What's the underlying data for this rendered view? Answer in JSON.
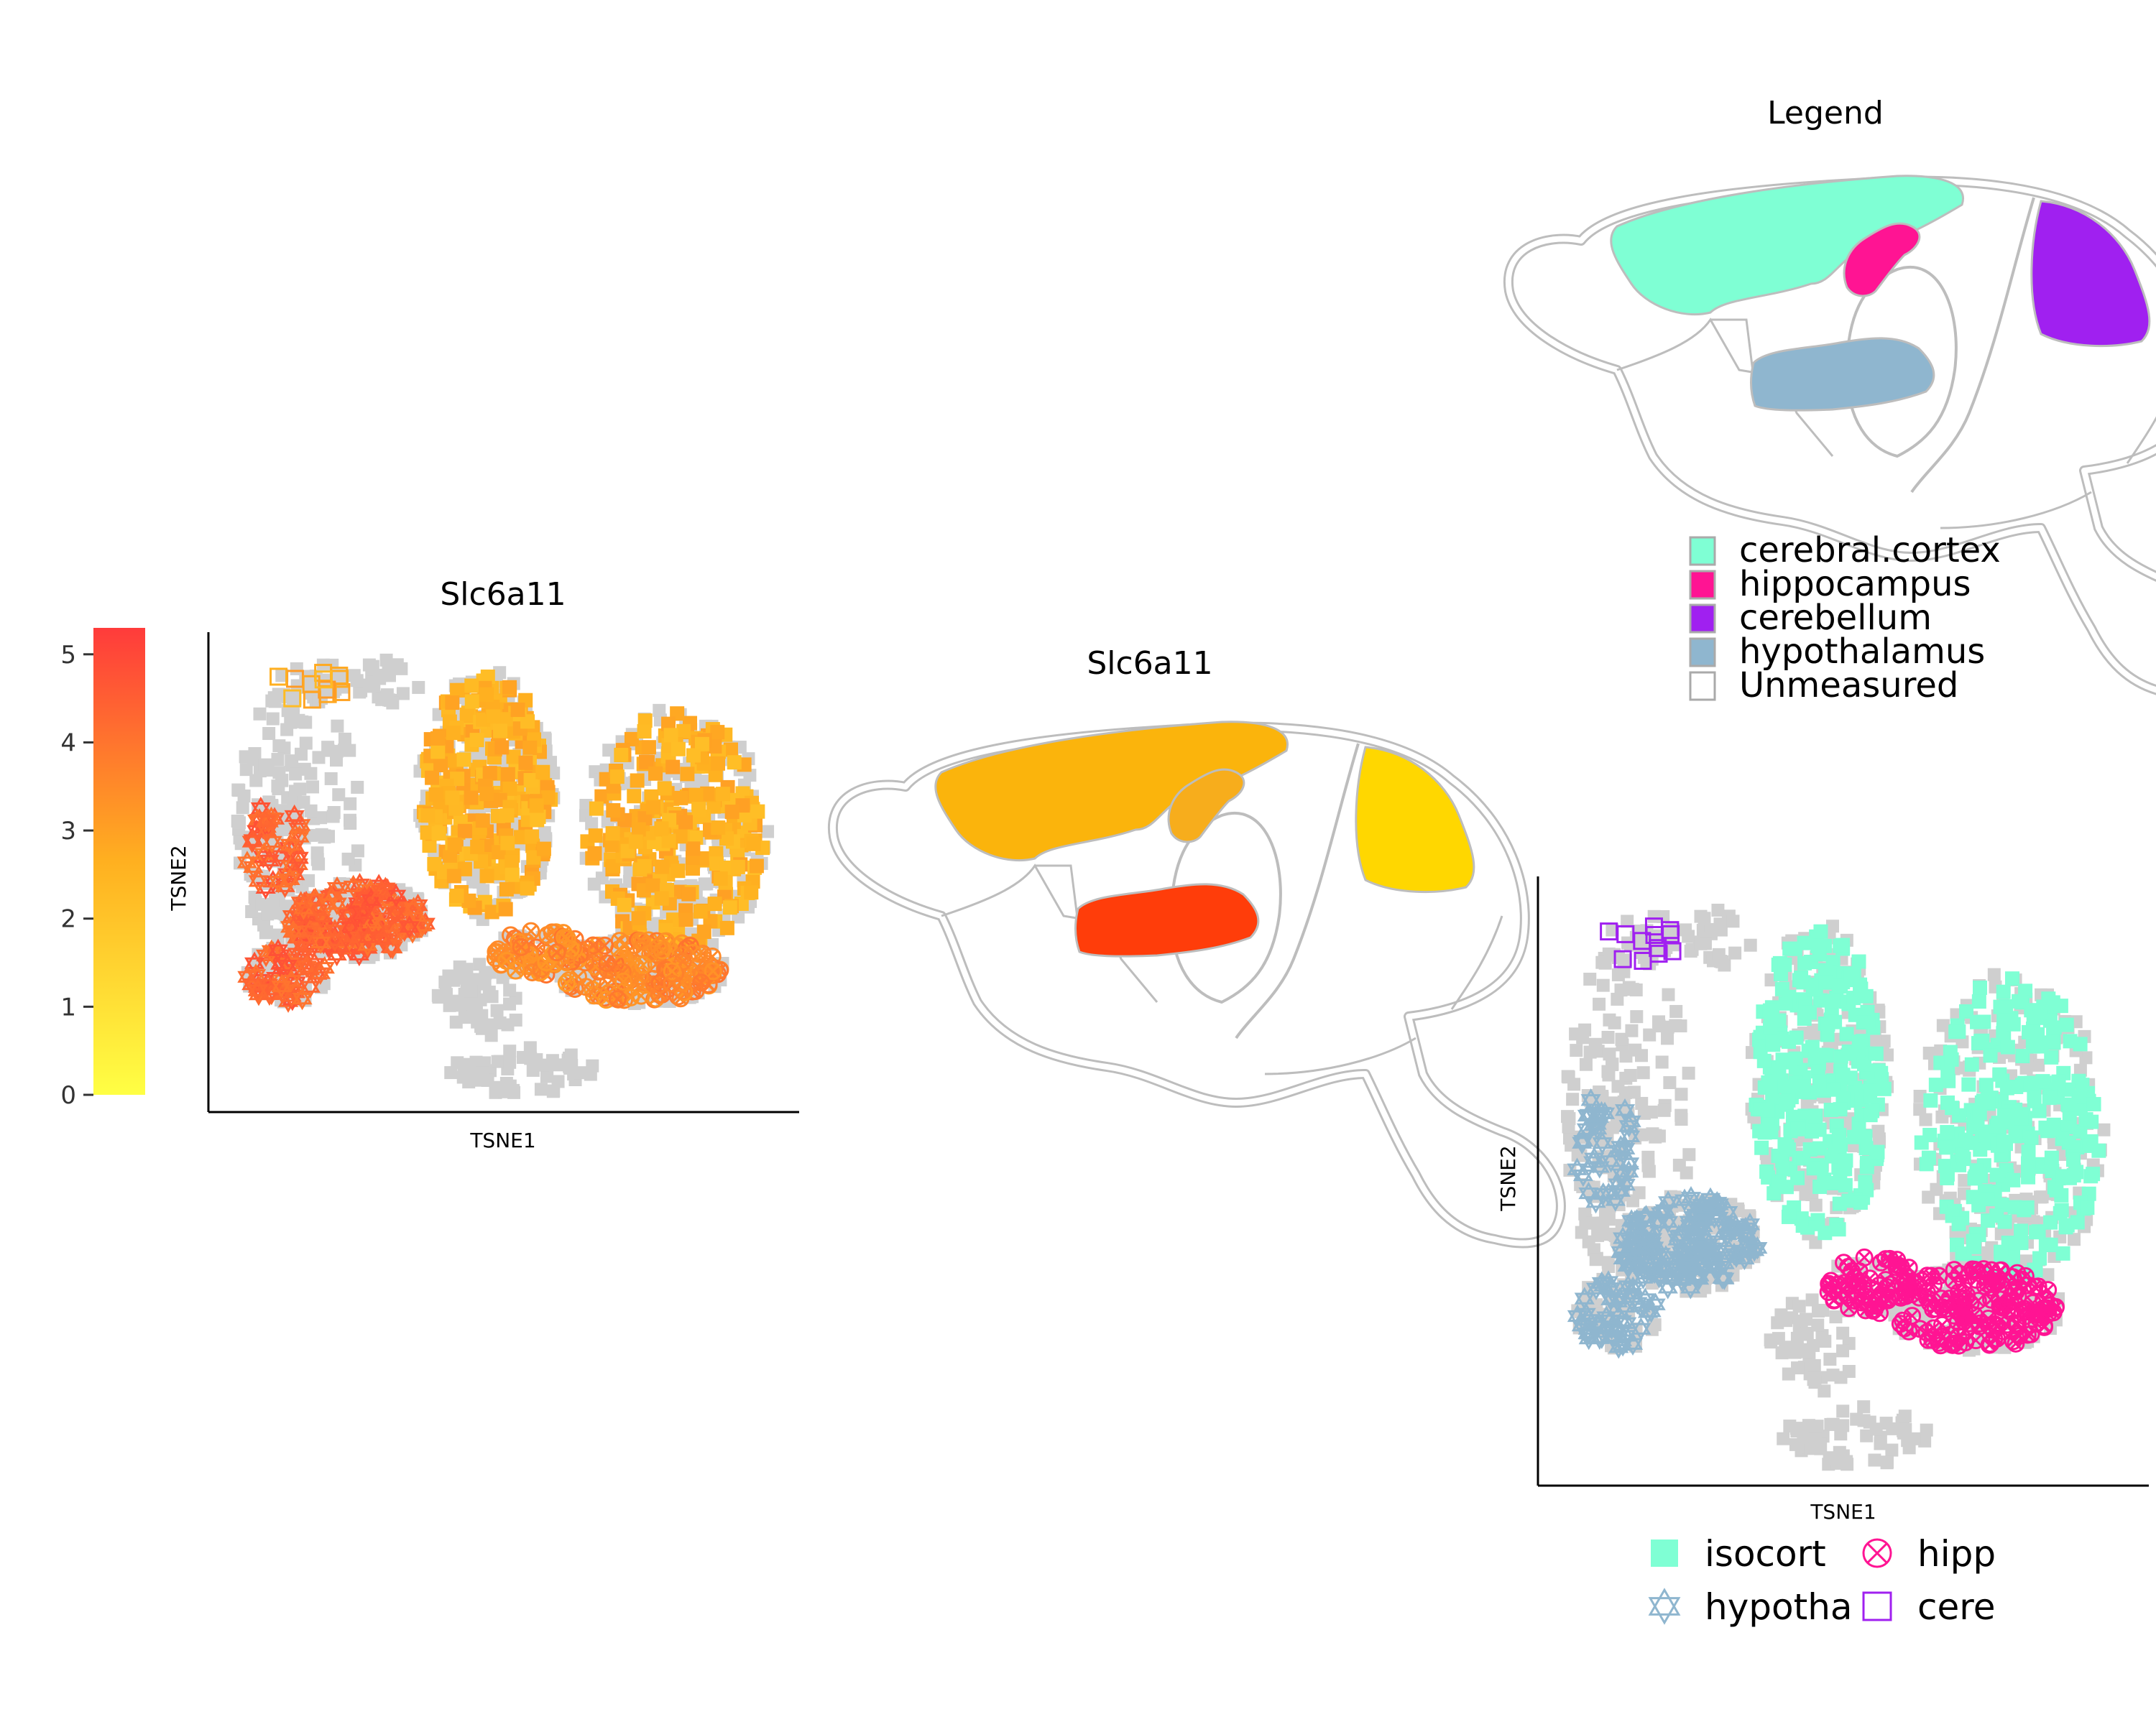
{
  "chart_data": [
    {
      "type": "scatter",
      "title": "Slc6a11",
      "xlabel": "TSNE1",
      "ylabel": "TSNE2",
      "colorbar": {
        "ticks": [
          "0",
          "1",
          "2",
          "3",
          "4",
          "5"
        ],
        "range": [
          0,
          5.3
        ],
        "low_color": "#ffff44",
        "mid_color": "#ffb020",
        "high_color": "#ff3b3b"
      },
      "clusters": [
        {
          "region": "isocort",
          "level": 2.6,
          "shape": "square"
        },
        {
          "region": "hipp",
          "level": 3.6,
          "shape": "circle-x"
        },
        {
          "region": "hypotha",
          "level": 4.4,
          "shape": "star"
        },
        {
          "region": "cere",
          "level": 2.7,
          "shape": "square-open"
        }
      ]
    },
    {
      "type": "heatmap",
      "title": "Slc6a11",
      "regions": [
        {
          "name": "cerebral.cortex",
          "color": "#fbb40c"
        },
        {
          "name": "hippocampus",
          "color": "#f7ad1c"
        },
        {
          "name": "cerebellum",
          "color": "#ffd700"
        },
        {
          "name": "hypothalamus",
          "color": "#ff3d0a"
        },
        {
          "name": "Unmeasured",
          "color": "#ffffff"
        }
      ]
    },
    {
      "type": "scatter",
      "xlabel": "TSNE1",
      "ylabel": "TSNE2",
      "legend": [
        {
          "label": "isocort",
          "color": "#7fffd4",
          "shape": "square"
        },
        {
          "label": "hipp",
          "color": "#ff1493",
          "shape": "circle-x"
        },
        {
          "label": "hypotha",
          "color": "#8fb6cf",
          "shape": "star"
        },
        {
          "label": "cere",
          "color": "#a020f0",
          "shape": "square-open"
        }
      ]
    }
  ],
  "atlas_legend": {
    "title": "Legend",
    "items": [
      {
        "label": "cerebral.cortex",
        "color": "#7fffd4"
      },
      {
        "label": "hippocampus",
        "color": "#ff1493"
      },
      {
        "label": "cerebellum",
        "color": "#a020f0"
      },
      {
        "label": "hypothalamus",
        "color": "#8fb6cf"
      },
      {
        "label": "Unmeasured",
        "color": "#ffffff"
      }
    ]
  }
}
